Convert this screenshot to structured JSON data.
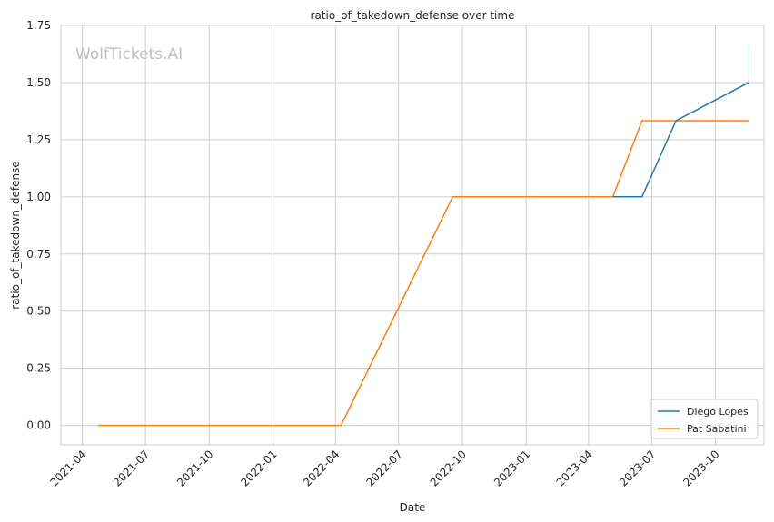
{
  "chart_data": {
    "type": "line",
    "title": "ratio_of_takedown_defense over time",
    "xlabel": "Date",
    "ylabel": "ratio_of_takedown_defense",
    "watermark": "WolfTickets.AI",
    "x_ticks": [
      "2021-04",
      "2021-07",
      "2021-10",
      "2022-01",
      "2022-04",
      "2022-07",
      "2022-10",
      "2023-01",
      "2023-04",
      "2023-07",
      "2023-10"
    ],
    "y_ticks": [
      "0.00",
      "0.25",
      "0.50",
      "0.75",
      "1.00",
      "1.25",
      "1.50",
      "1.75"
    ],
    "xlim": [
      "2021-03-01",
      "2023-12-10"
    ],
    "ylim": [
      -0.085,
      1.75
    ],
    "grid": true,
    "legend_position": "bottom-right",
    "series": [
      {
        "name": "Diego Lopes",
        "color": "#1f77b4",
        "points": [
          {
            "x": "2023-05-06",
            "y": 1.0
          },
          {
            "x": "2023-06-17",
            "y": 1.0
          },
          {
            "x": "2023-08-05",
            "y": 1.333
          },
          {
            "x": "2023-11-18",
            "y": 1.5
          },
          {
            "x": "2023-11-18",
            "y": 1.667
          }
        ]
      },
      {
        "name": "Pat Sabatini",
        "color": "#ff7f0e",
        "points": [
          {
            "x": "2021-04-24",
            "y": 0.0
          },
          {
            "x": "2022-04-09",
            "y": 0.0
          },
          {
            "x": "2022-09-17",
            "y": 1.0
          },
          {
            "x": "2023-05-06",
            "y": 1.0
          },
          {
            "x": "2023-06-17",
            "y": 1.333
          },
          {
            "x": "2023-11-18",
            "y": 1.333
          }
        ]
      }
    ]
  }
}
